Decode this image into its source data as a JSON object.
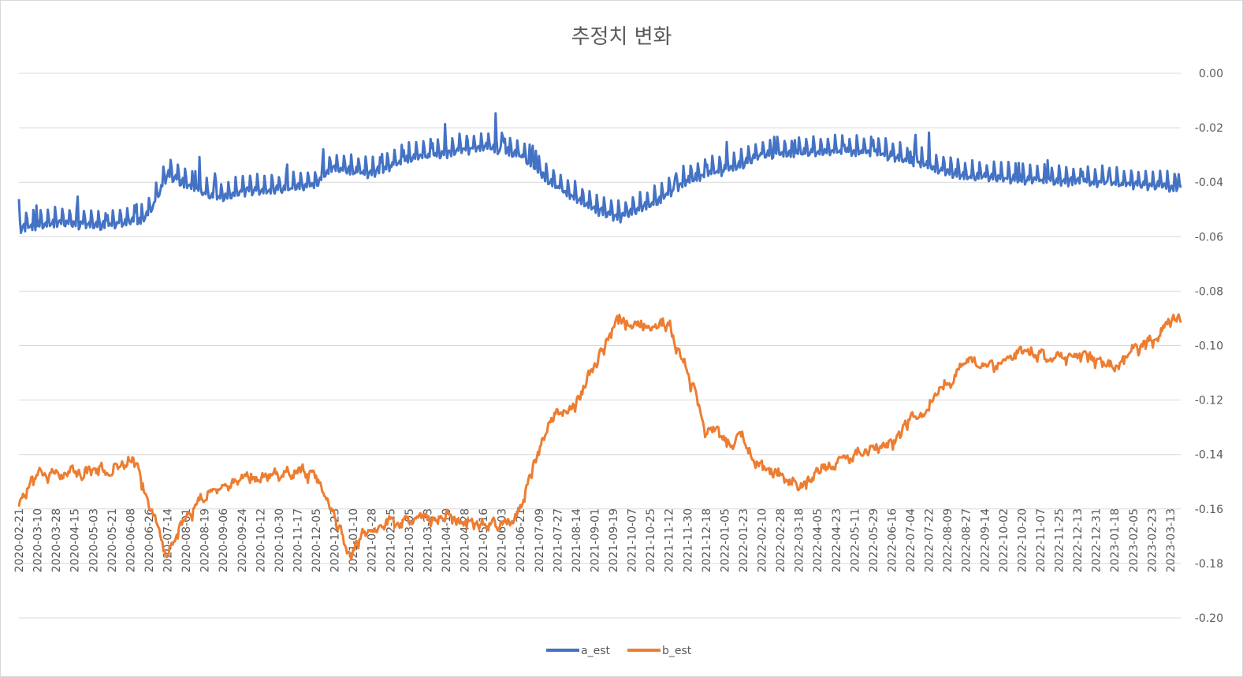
{
  "chart_data": {
    "type": "line",
    "title": "추정치 변화",
    "xlabel": "",
    "ylabel": "",
    "ylim": [
      -0.2,
      0.0
    ],
    "y_ticks": [
      "0.00",
      "-0.02",
      "-0.04",
      "-0.06",
      "-0.08",
      "-0.10",
      "-0.12",
      "-0.14",
      "-0.16",
      "-0.18",
      "-0.20"
    ],
    "grid": "horizontal",
    "legend_position": "bottom",
    "x_start": "2020-02-21",
    "x_end": "2023-03-23",
    "x_tick_labels": [
      "2020-02-21",
      "2020-03-10",
      "2020-03-28",
      "2020-04-15",
      "2020-05-03",
      "2020-05-21",
      "2020-06-08",
      "2020-06-26",
      "2020-07-14",
      "2020-08-01",
      "2020-08-19",
      "2020-09-06",
      "2020-09-24",
      "2020-10-12",
      "2020-10-30",
      "2020-11-17",
      "2020-12-05",
      "2020-12-23",
      "2021-01-10",
      "2021-01-28",
      "2021-02-15",
      "2021-03-05",
      "2021-03-23",
      "2021-04-10",
      "2021-04-28",
      "2021-05-16",
      "2021-06-03",
      "2021-06-21",
      "2021-07-09",
      "2021-07-27",
      "2021-08-14",
      "2021-09-01",
      "2021-09-19",
      "2021-10-07",
      "2021-10-25",
      "2021-11-12",
      "2021-11-30",
      "2021-12-18",
      "2022-01-05",
      "2022-01-23",
      "2022-02-10",
      "2022-02-28",
      "2022-03-18",
      "2022-04-05",
      "2022-04-23",
      "2022-05-11",
      "2022-05-29",
      "2022-06-16",
      "2022-07-04",
      "2022-07-22",
      "2022-08-09",
      "2022-08-27",
      "2022-09-14",
      "2022-10-02",
      "2022-10-20",
      "2022-11-07",
      "2022-11-25",
      "2022-12-13",
      "2022-12-31",
      "2023-01-18",
      "2023-02-05",
      "2023-02-23",
      "2023-03-13"
    ],
    "series": [
      {
        "name": "a_est",
        "color": "#4472c4",
        "trend": [
          [
            "2020-02-21",
            -0.056
          ],
          [
            "2020-04-01",
            -0.054
          ],
          [
            "2020-05-15",
            -0.055
          ],
          [
            "2020-06-20",
            -0.053
          ],
          [
            "2020-07-01",
            -0.047
          ],
          [
            "2020-07-14",
            -0.036
          ],
          [
            "2020-08-01",
            -0.04
          ],
          [
            "2020-09-01",
            -0.045
          ],
          [
            "2020-10-01",
            -0.042
          ],
          [
            "2020-11-01",
            -0.042
          ],
          [
            "2020-12-05",
            -0.04
          ],
          [
            "2020-12-20",
            -0.034
          ],
          [
            "2021-01-28",
            -0.036
          ],
          [
            "2021-03-01",
            -0.031
          ],
          [
            "2021-04-15",
            -0.028
          ],
          [
            "2021-05-20",
            -0.026
          ],
          [
            "2021-06-21",
            -0.029
          ],
          [
            "2021-07-20",
            -0.039
          ],
          [
            "2021-09-01",
            -0.049
          ],
          [
            "2021-09-25",
            -0.052
          ],
          [
            "2021-11-01",
            -0.046
          ],
          [
            "2021-12-01",
            -0.038
          ],
          [
            "2022-01-20",
            -0.033
          ],
          [
            "2022-02-10",
            -0.029
          ],
          [
            "2022-04-01",
            -0.028
          ],
          [
            "2022-06-01",
            -0.028
          ],
          [
            "2022-07-10",
            -0.032
          ],
          [
            "2022-08-27",
            -0.037
          ],
          [
            "2022-10-15",
            -0.038
          ],
          [
            "2022-12-31",
            -0.039
          ],
          [
            "2023-03-23",
            -0.041
          ]
        ],
        "amplitude": 0.0045
      },
      {
        "name": "b_est",
        "color": "#ed7d31",
        "trend": [
          [
            "2020-02-21",
            -0.157
          ],
          [
            "2020-03-10",
            -0.148
          ],
          [
            "2020-04-01",
            -0.147
          ],
          [
            "2020-05-15",
            -0.146
          ],
          [
            "2020-06-10",
            -0.142
          ],
          [
            "2020-06-26",
            -0.158
          ],
          [
            "2020-07-14",
            -0.175
          ],
          [
            "2020-08-01",
            -0.163
          ],
          [
            "2020-08-19",
            -0.155
          ],
          [
            "2020-09-24",
            -0.149
          ],
          [
            "2020-10-30",
            -0.147
          ],
          [
            "2020-11-20",
            -0.145
          ],
          [
            "2020-12-10",
            -0.152
          ],
          [
            "2020-12-23",
            -0.162
          ],
          [
            "2021-01-05",
            -0.175
          ],
          [
            "2021-01-28",
            -0.165
          ],
          [
            "2021-03-01",
            -0.164
          ],
          [
            "2021-04-15",
            -0.163
          ],
          [
            "2021-06-03",
            -0.166
          ],
          [
            "2021-06-21",
            -0.16
          ],
          [
            "2021-07-20",
            -0.127
          ],
          [
            "2021-08-14",
            -0.12
          ],
          [
            "2021-09-10",
            -0.1
          ],
          [
            "2021-09-22",
            -0.088
          ],
          [
            "2021-10-07",
            -0.092
          ],
          [
            "2021-11-12",
            -0.093
          ],
          [
            "2021-11-30",
            -0.11
          ],
          [
            "2021-12-18",
            -0.13
          ],
          [
            "2022-01-05",
            -0.135
          ],
          [
            "2022-01-23",
            -0.135
          ],
          [
            "2022-02-10",
            -0.145
          ],
          [
            "2022-03-18",
            -0.151
          ],
          [
            "2022-05-11",
            -0.14
          ],
          [
            "2022-06-16",
            -0.135
          ],
          [
            "2022-07-22",
            -0.121
          ],
          [
            "2022-08-27",
            -0.105
          ],
          [
            "2022-09-14",
            -0.108
          ],
          [
            "2022-10-20",
            -0.103
          ],
          [
            "2022-12-13",
            -0.104
          ],
          [
            "2022-12-31",
            -0.106
          ],
          [
            "2023-01-18",
            -0.108
          ],
          [
            "2023-02-10",
            -0.1
          ],
          [
            "2023-03-23",
            -0.09
          ]
        ],
        "amplitude": 0.0025
      }
    ]
  },
  "legend": {
    "a_label": "a_est",
    "b_label": "b_est"
  }
}
